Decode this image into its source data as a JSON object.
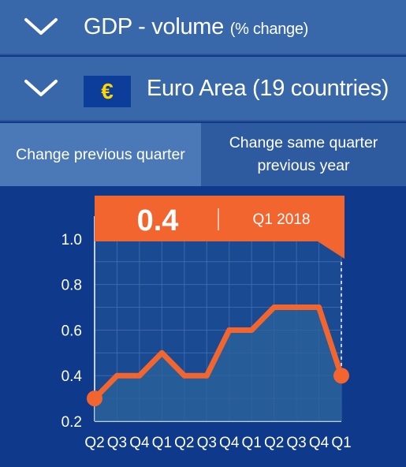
{
  "header": {
    "indicator_title": "GDP - volume",
    "indicator_unit": "(% change)",
    "region_title": "Euro Area (19 countries)",
    "region_flag_symbol": "€",
    "chevron_icon": "chevron-down-icon"
  },
  "tabs": [
    {
      "label": "Change previous quarter",
      "active": true
    },
    {
      "label": "Change same quarter previous year",
      "active": false
    }
  ],
  "callout": {
    "value": "0.4",
    "period": "Q1 2018"
  },
  "colors": {
    "background": "#0f3a8c",
    "header_row": "#3867aa",
    "tab_active": "#4b78b6",
    "tab_inactive": "#2e5aa0",
    "accent": "#f2652f",
    "plot_fill": "#2b6199"
  },
  "chart_data": {
    "type": "line",
    "categories": [
      "Q2",
      "Q3",
      "Q4",
      "Q1",
      "Q2",
      "Q3",
      "Q4",
      "Q1",
      "Q2",
      "Q3",
      "Q4",
      "Q1"
    ],
    "values": [
      0.3,
      0.4,
      0.4,
      0.5,
      0.4,
      0.4,
      0.6,
      0.6,
      0.7,
      0.7,
      0.7,
      0.4
    ],
    "ylim": [
      0.2,
      1.1
    ],
    "yticks": [
      "0.2",
      "0.4",
      "0.6",
      "0.8",
      "1.0"
    ],
    "ytick_values": [
      0.2,
      0.4,
      0.6,
      0.8,
      1.0
    ],
    "highlighted_points": [
      0,
      11
    ],
    "grid": true,
    "area_fill": true
  }
}
